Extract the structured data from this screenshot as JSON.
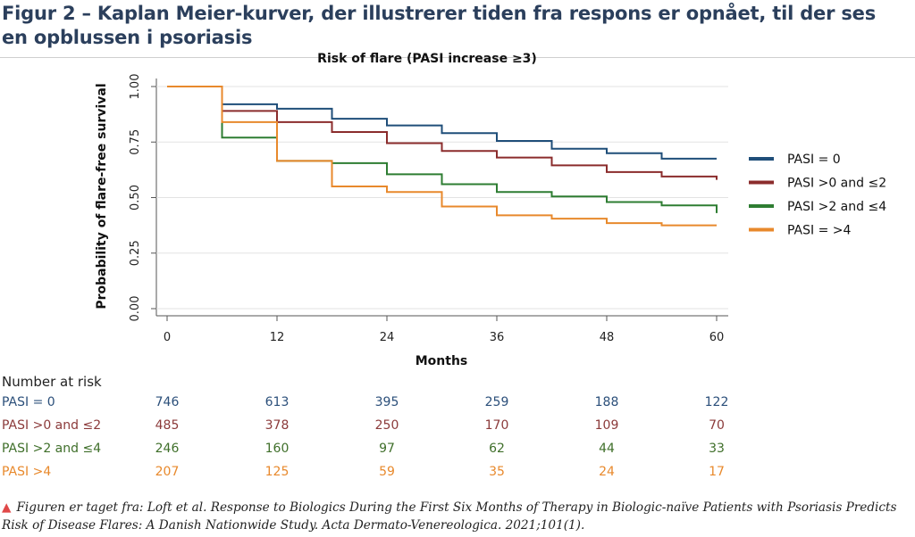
{
  "figure": {
    "title": "Figur 2 – Kaplan Meier-kurver, der illustrerer tiden fra respons er opnået, til der ses en opblussen i psoriasis",
    "source_marker": "▲",
    "source": "Figuren er taget fra: Loft et al. Response to Biologics During the First Six Months of Therapy in Biologic-naïve Patients with Psoriasis Predicts Risk of Disease Flares: A Danish Nationwide Study. Acta Dermato-Venereologica. 2021;101(1)."
  },
  "chart_data": {
    "type": "line",
    "step": true,
    "title": "Risk of flare (PASI increase ≥3)",
    "xlabel": "Months",
    "ylabel": "Probability of flare-free survival",
    "xlim": [
      0,
      60
    ],
    "ylim": [
      0,
      1
    ],
    "x_ticks": [
      0,
      12,
      24,
      36,
      48,
      60
    ],
    "y_ticks": [
      "0.00",
      "0.25",
      "0.50",
      "0.75",
      "1.00"
    ],
    "grid": true,
    "legend_position": "right",
    "series": [
      {
        "name": "PASI = 0",
        "color": "#1f4e79",
        "points": [
          [
            0,
            1.0
          ],
          [
            6,
            0.92
          ],
          [
            12,
            0.9
          ],
          [
            18,
            0.855
          ],
          [
            24,
            0.825
          ],
          [
            30,
            0.79
          ],
          [
            36,
            0.755
          ],
          [
            42,
            0.72
          ],
          [
            48,
            0.7
          ],
          [
            54,
            0.675
          ],
          [
            60,
            0.675
          ]
        ]
      },
      {
        "name": "PASI >0 and ≤2",
        "color": "#8b2c2c",
        "points": [
          [
            0,
            1.0
          ],
          [
            6,
            0.89
          ],
          [
            12,
            0.84
          ],
          [
            18,
            0.795
          ],
          [
            24,
            0.745
          ],
          [
            30,
            0.71
          ],
          [
            36,
            0.68
          ],
          [
            42,
            0.645
          ],
          [
            48,
            0.615
          ],
          [
            54,
            0.595
          ],
          [
            60,
            0.58
          ]
        ]
      },
      {
        "name": "PASI >2 and ≤4",
        "color": "#2e7d32",
        "points": [
          [
            0,
            1.0
          ],
          [
            6,
            0.77
          ],
          [
            12,
            0.665
          ],
          [
            18,
            0.655
          ],
          [
            24,
            0.605
          ],
          [
            30,
            0.56
          ],
          [
            36,
            0.525
          ],
          [
            42,
            0.505
          ],
          [
            48,
            0.48
          ],
          [
            54,
            0.465
          ],
          [
            60,
            0.43
          ]
        ]
      },
      {
        "name": "PASI = >4",
        "color": "#e8892c",
        "points": [
          [
            0,
            1.0
          ],
          [
            6,
            0.84
          ],
          [
            12,
            0.665
          ],
          [
            18,
            0.55
          ],
          [
            24,
            0.525
          ],
          [
            30,
            0.46
          ],
          [
            36,
            0.42
          ],
          [
            42,
            0.405
          ],
          [
            48,
            0.385
          ],
          [
            54,
            0.375
          ],
          [
            60,
            0.375
          ]
        ]
      }
    ],
    "risk_table": {
      "title": "Number at risk",
      "times": [
        0,
        12,
        24,
        36,
        48,
        60
      ],
      "rows": [
        {
          "label": "PASI = 0",
          "color": "#2b4f7a",
          "values": [
            "746",
            "613",
            "395",
            "259",
            "188",
            "122"
          ]
        },
        {
          "label": "PASI >0 and ≤2",
          "color": "#8b3a3a",
          "values": [
            "485",
            "378",
            "250",
            "170",
            "109",
            "70"
          ]
        },
        {
          "label": "PASI >2 and ≤4",
          "color": "#3f6f2a",
          "values": [
            "246",
            "160",
            "97",
            "62",
            "44",
            "33"
          ]
        },
        {
          "label": "PASI >4",
          "color": "#e8892c",
          "values": [
            "207",
            "125",
            "59",
            "35",
            "24",
            "17"
          ]
        }
      ]
    }
  }
}
